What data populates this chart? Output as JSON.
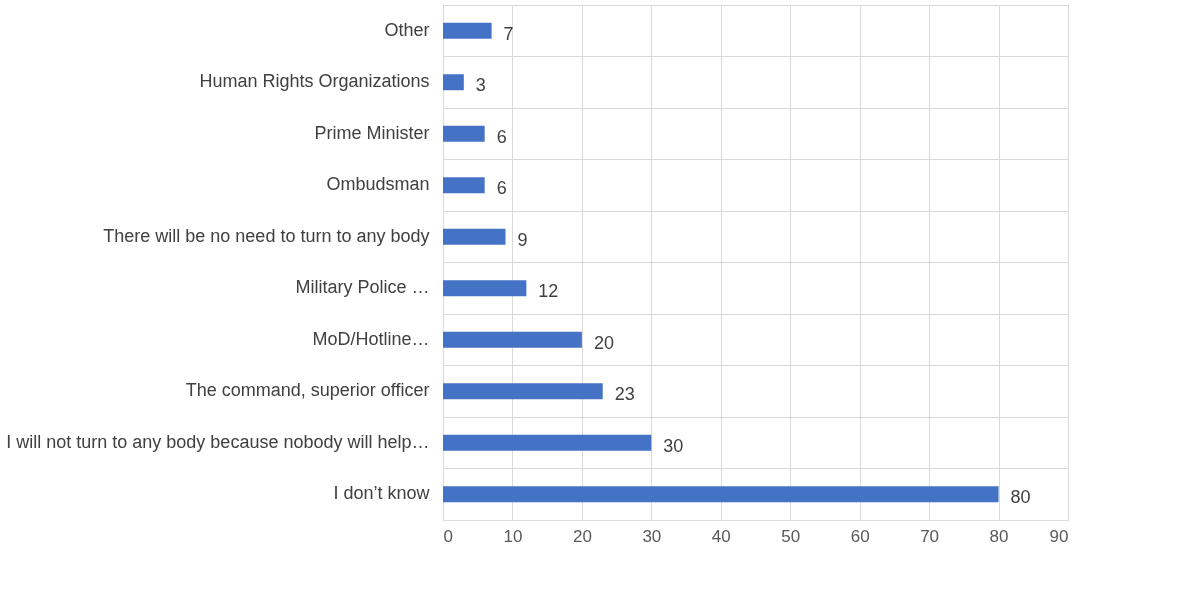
{
  "chart_data": {
    "type": "bar",
    "orientation": "horizontal",
    "categories": [
      "Other",
      "Human Rights Organizations",
      "Prime Minister",
      "Ombudsman",
      "There will be no need to turn to any body",
      "Military Police …",
      "MoD/Hotline…",
      "The command, superior officer",
      "I will not turn to any body because nobody will help…",
      "I don’t know"
    ],
    "values": [
      7,
      3,
      6,
      6,
      9,
      12,
      20,
      23,
      30,
      80
    ],
    "color": "#4472c4",
    "xlim": [
      0,
      90
    ],
    "xticks": [
      0,
      10,
      20,
      30,
      40,
      50,
      60,
      70,
      80,
      90
    ],
    "grid": true,
    "data_labels": true
  }
}
